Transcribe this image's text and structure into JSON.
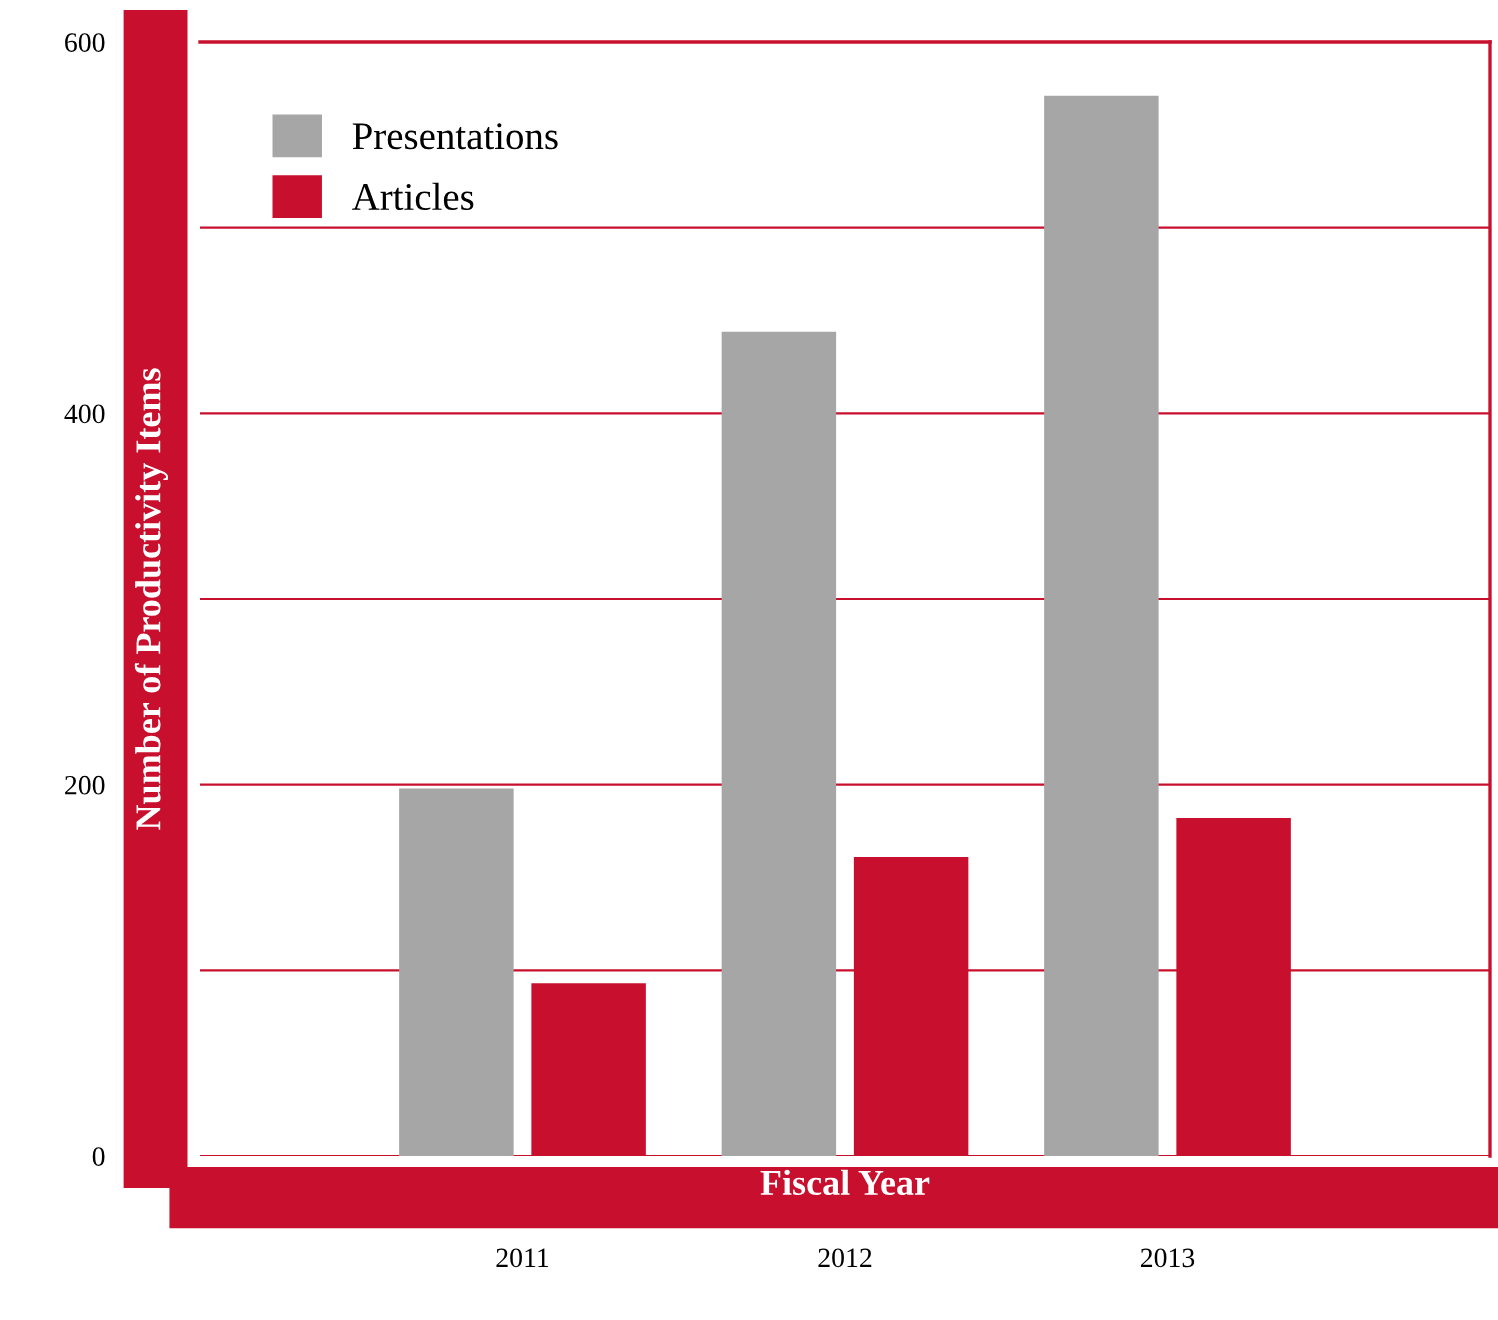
{
  "chart_data": {
    "type": "bar",
    "xlabel": "Fiscal Year",
    "ylabel": "Number of Productivity Items",
    "categories": [
      "2011",
      "2012",
      "2013"
    ],
    "series": [
      {
        "name": "Presentations",
        "color": "#a6a6a6",
        "values": [
          198,
          444,
          571
        ]
      },
      {
        "name": "Articles",
        "color": "#c8102e",
        "values": [
          93,
          161,
          182
        ]
      }
    ],
    "ylim": [
      0,
      600
    ],
    "yticks": [
      0,
      {
        "value": 100,
        "label": null
      },
      200,
      {
        "value": 300,
        "label": null
      },
      400,
      {
        "value": 500,
        "label": null
      },
      600
    ],
    "grid": "y",
    "legend": "top left"
  }
}
